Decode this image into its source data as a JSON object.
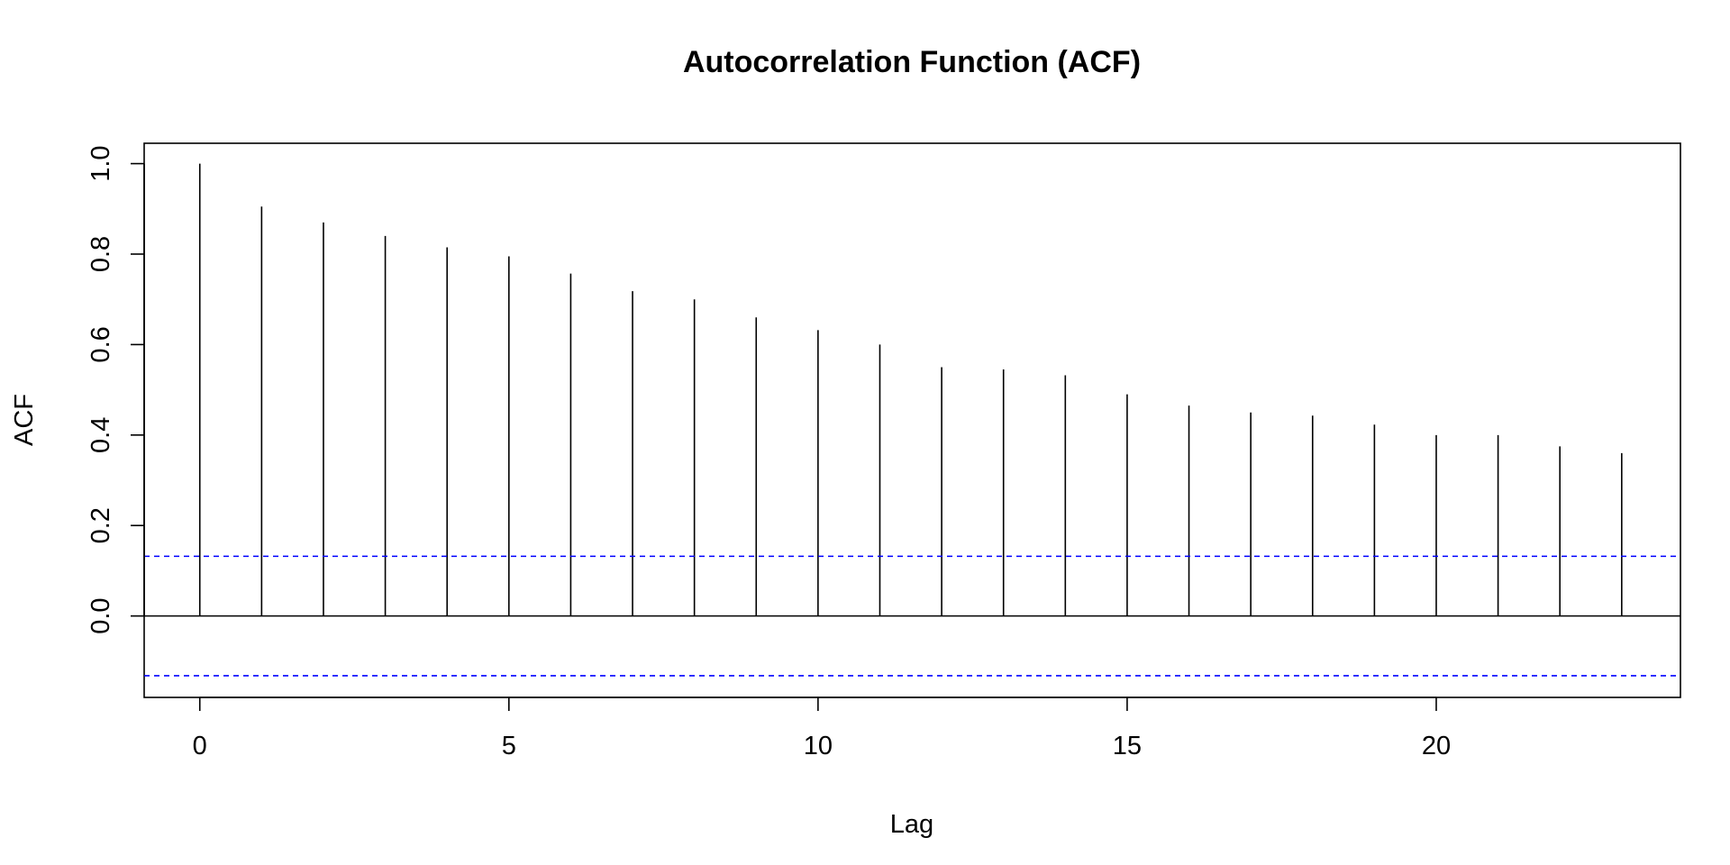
{
  "chart_data": {
    "type": "bar",
    "subtype": "acf-stem",
    "title": "Autocorrelation Function (ACF)",
    "xlabel": "Lag",
    "ylabel": "ACF",
    "x": [
      0,
      1,
      2,
      3,
      4,
      5,
      6,
      7,
      8,
      9,
      10,
      11,
      12,
      13,
      14,
      15,
      16,
      17,
      18,
      19,
      20,
      21,
      22,
      23
    ],
    "values": [
      1.0,
      0.905,
      0.87,
      0.84,
      0.815,
      0.795,
      0.757,
      0.718,
      0.7,
      0.66,
      0.632,
      0.6,
      0.55,
      0.545,
      0.532,
      0.49,
      0.465,
      0.45,
      0.443,
      0.423,
      0.4,
      0.4,
      0.375,
      0.36
    ],
    "xlim": [
      -0.9,
      23.95
    ],
    "ylim": [
      -0.18,
      1.045
    ],
    "xticks": [
      0,
      5,
      10,
      15,
      20
    ],
    "yticks": [
      0.0,
      0.2,
      0.4,
      0.6,
      0.8,
      1.0
    ],
    "xtick_labels": [
      "0",
      "5",
      "10",
      "15",
      "20"
    ],
    "ytick_labels": [
      "0.0",
      "0.2",
      "0.4",
      "0.6",
      "0.8",
      "1.0"
    ],
    "confidence_bound": 0.132,
    "zero_line": true,
    "grid": false,
    "colors": {
      "stems": "#000000",
      "bounds": "#0000ff",
      "axes": "#000000"
    }
  }
}
